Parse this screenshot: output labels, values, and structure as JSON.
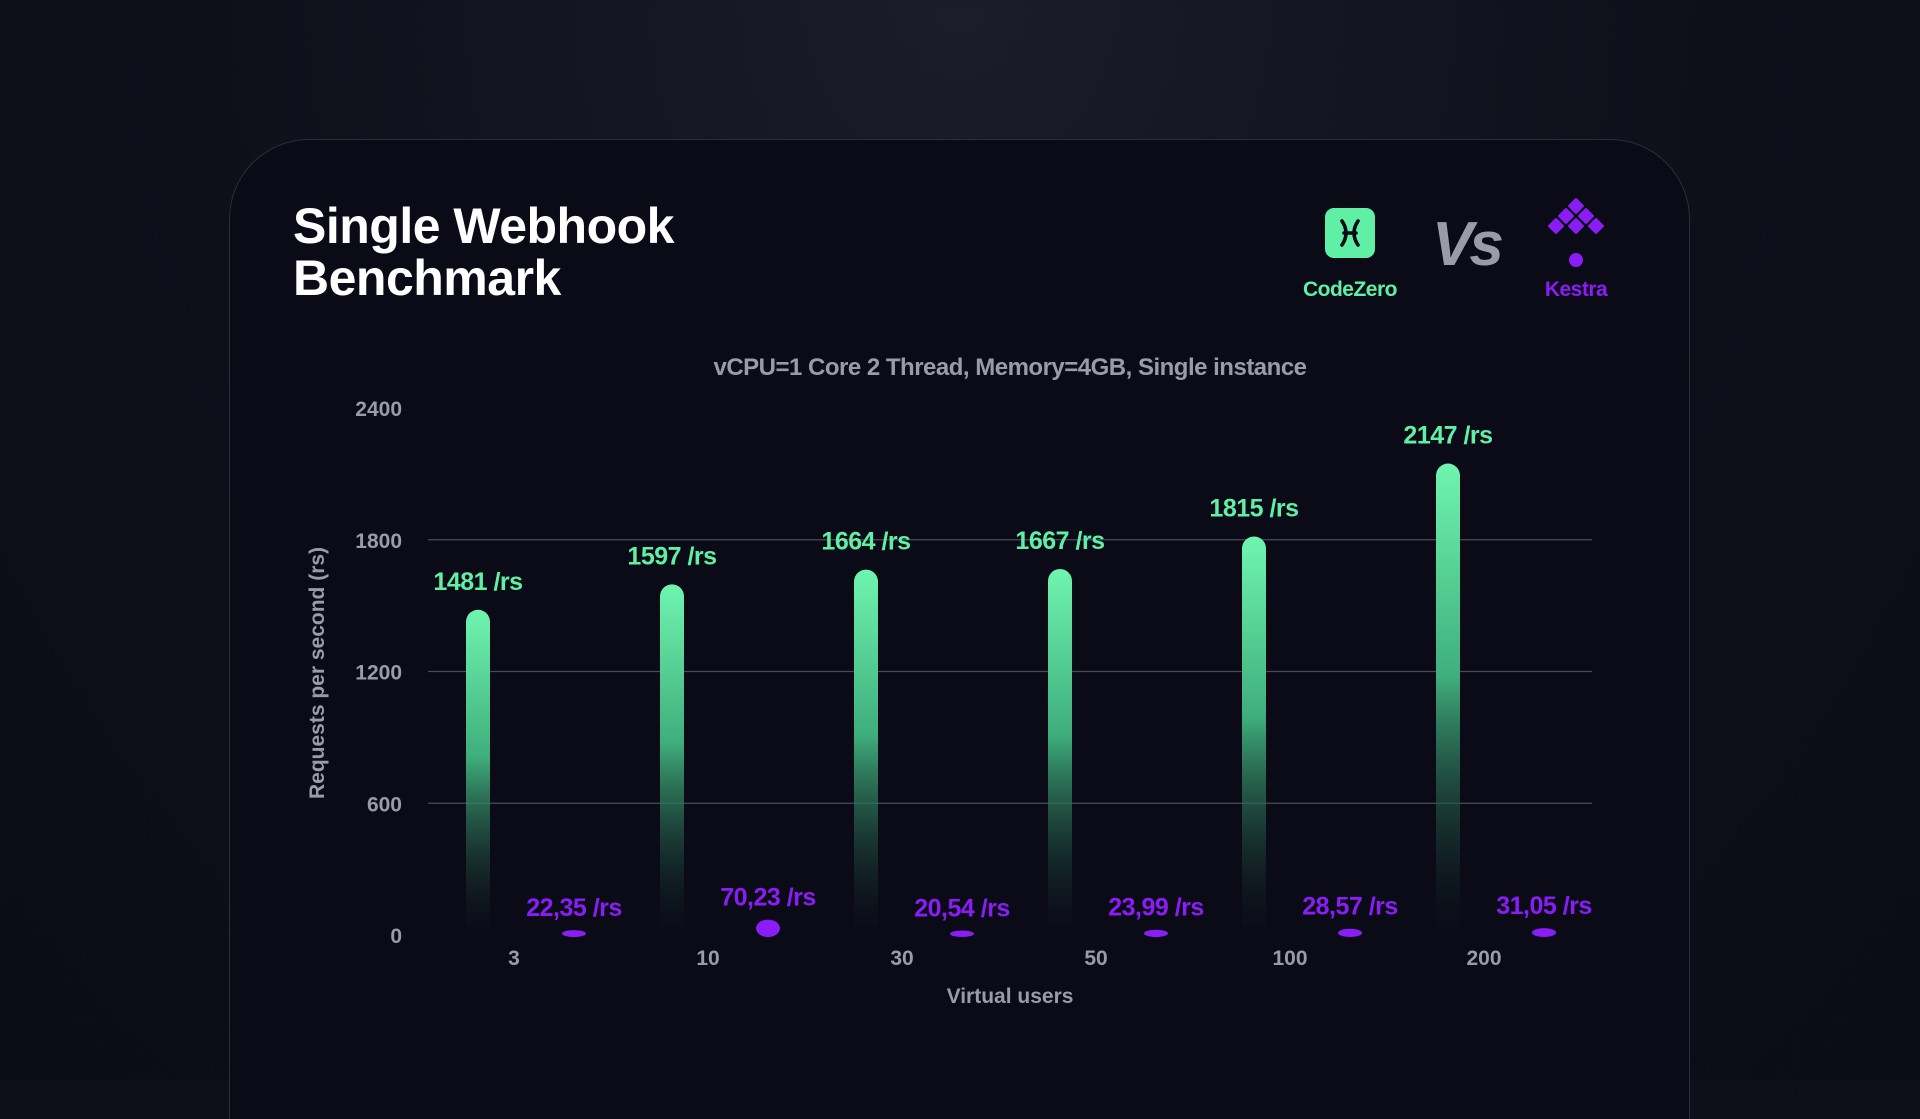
{
  "header": {
    "title_line1": "Single Webhook",
    "title_line2": "Benchmark",
    "brand_a": "CodeZero",
    "vs": "Vs",
    "brand_b": "Kestra"
  },
  "colors": {
    "codezero": "#5ff0a6",
    "kestra": "#8a1df5",
    "muted": "#9b9aa8"
  },
  "chart_data": {
    "type": "bar",
    "subtitle": "vCPU=1 Core 2 Thread, Memory=4GB, Single instance",
    "xlabel": "Virtual users",
    "ylabel": "Requests per second (rs)",
    "categories": [
      "3",
      "10",
      "30",
      "50",
      "100",
      "200"
    ],
    "ylim": [
      0,
      2400
    ],
    "yticks": [
      0,
      600,
      1200,
      1800,
      2400
    ],
    "grid": "horizontal",
    "legend": "logos top-right",
    "series": [
      {
        "name": "CodeZero",
        "values": [
          1481,
          1597,
          1664,
          1667,
          1815,
          2147
        ],
        "labels": [
          "1481 /rs",
          "1597 /rs",
          "1664 /rs",
          "1667 /rs",
          "1815 /rs",
          "2147 /rs"
        ]
      },
      {
        "name": "Kestra",
        "values": [
          22.35,
          70.23,
          20.54,
          23.99,
          28.57,
          31.05
        ],
        "labels": [
          "22,35 /rs",
          "70,23 /rs",
          "20,54 /rs",
          "23,99 /rs",
          "28,57 /rs",
          "31,05 /rs"
        ]
      }
    ]
  }
}
